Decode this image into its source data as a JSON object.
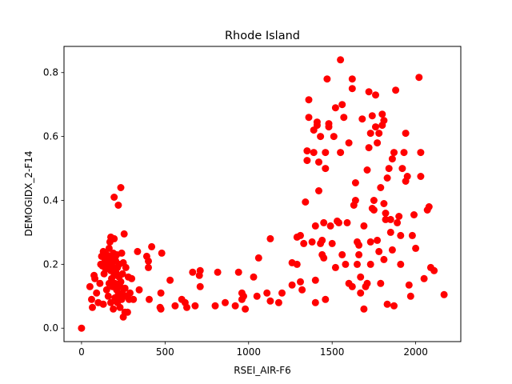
{
  "chart_data": {
    "type": "scatter",
    "title": "Rhode Island",
    "xlabel": "RSEI_AIR-F6",
    "ylabel": "DEMOGIDX_2-F14",
    "xlim": [
      -105,
      2270
    ],
    "ylim": [
      -0.042,
      0.882
    ],
    "xticks": [
      0,
      500,
      1000,
      1500,
      2000
    ],
    "yticks": [
      0.0,
      0.2,
      0.4,
      0.6,
      0.8
    ],
    "xtick_labels": [
      "0",
      "500",
      "1000",
      "1500",
      "2000"
    ],
    "ytick_labels": [
      "0.0",
      "0.2",
      "0.4",
      "0.6",
      "0.8"
    ],
    "marker_color": "#ff0000",
    "grid": false,
    "points": [
      [
        0,
        0.0
      ],
      [
        50,
        0.13
      ],
      [
        60,
        0.09
      ],
      [
        65,
        0.065
      ],
      [
        75,
        0.165
      ],
      [
        80,
        0.155
      ],
      [
        90,
        0.11
      ],
      [
        100,
        0.08
      ],
      [
        110,
        0.14
      ],
      [
        115,
        0.2
      ],
      [
        120,
        0.225
      ],
      [
        125,
        0.195
      ],
      [
        130,
        0.24
      ],
      [
        130,
        0.075
      ],
      [
        135,
        0.17
      ],
      [
        140,
        0.215
      ],
      [
        145,
        0.185
      ],
      [
        150,
        0.23
      ],
      [
        150,
        0.12
      ],
      [
        155,
        0.205
      ],
      [
        160,
        0.21
      ],
      [
        160,
        0.1
      ],
      [
        165,
        0.25
      ],
      [
        165,
        0.14
      ],
      [
        170,
        0.27
      ],
      [
        170,
        0.2
      ],
      [
        175,
        0.285
      ],
      [
        175,
        0.18
      ],
      [
        175,
        0.08
      ],
      [
        180,
        0.225
      ],
      [
        180,
        0.155
      ],
      [
        185,
        0.21
      ],
      [
        185,
        0.13
      ],
      [
        190,
        0.235
      ],
      [
        190,
        0.19
      ],
      [
        190,
        0.06
      ],
      [
        195,
        0.41
      ],
      [
        195,
        0.28
      ],
      [
        195,
        0.165
      ],
      [
        200,
        0.22
      ],
      [
        200,
        0.14
      ],
      [
        200,
        0.095
      ],
      [
        205,
        0.175
      ],
      [
        205,
        0.21
      ],
      [
        210,
        0.12
      ],
      [
        210,
        0.23
      ],
      [
        215,
        0.08
      ],
      [
        215,
        0.19
      ],
      [
        220,
        0.385
      ],
      [
        220,
        0.105
      ],
      [
        225,
        0.16
      ],
      [
        225,
        0.2
      ],
      [
        230,
        0.065
      ],
      [
        230,
        0.13
      ],
      [
        235,
        0.44
      ],
      [
        235,
        0.145
      ],
      [
        240,
        0.09
      ],
      [
        240,
        0.235
      ],
      [
        245,
        0.11
      ],
      [
        245,
        0.17
      ],
      [
        250,
        0.035
      ],
      [
        250,
        0.205
      ],
      [
        255,
        0.295
      ],
      [
        260,
        0.125
      ],
      [
        260,
        0.05
      ],
      [
        265,
        0.19
      ],
      [
        270,
        0.1
      ],
      [
        275,
        0.05
      ],
      [
        280,
        0.16
      ],
      [
        285,
        0.09
      ],
      [
        290,
        0.11
      ],
      [
        300,
        0.155
      ],
      [
        310,
        0.09
      ],
      [
        335,
        0.24
      ],
      [
        345,
        0.12
      ],
      [
        390,
        0.225
      ],
      [
        400,
        0.19
      ],
      [
        400,
        0.21
      ],
      [
        405,
        0.09
      ],
      [
        420,
        0.255
      ],
      [
        470,
        0.065
      ],
      [
        475,
        0.06
      ],
      [
        475,
        0.11
      ],
      [
        480,
        0.235
      ],
      [
        530,
        0.15
      ],
      [
        560,
        0.07
      ],
      [
        600,
        0.09
      ],
      [
        620,
        0.08
      ],
      [
        630,
        0.065
      ],
      [
        665,
        0.175
      ],
      [
        680,
        0.07
      ],
      [
        705,
        0.165
      ],
      [
        710,
        0.18
      ],
      [
        710,
        0.13
      ],
      [
        800,
        0.07
      ],
      [
        815,
        0.175
      ],
      [
        860,
        0.08
      ],
      [
        920,
        0.07
      ],
      [
        940,
        0.175
      ],
      [
        960,
        0.11
      ],
      [
        960,
        0.09
      ],
      [
        970,
        0.1
      ],
      [
        980,
        0.06
      ],
      [
        1030,
        0.16
      ],
      [
        1050,
        0.1
      ],
      [
        1060,
        0.22
      ],
      [
        1110,
        0.11
      ],
      [
        1130,
        0.28
      ],
      [
        1130,
        0.085
      ],
      [
        1180,
        0.08
      ],
      [
        1200,
        0.11
      ],
      [
        1260,
        0.205
      ],
      [
        1260,
        0.135
      ],
      [
        1290,
        0.285
      ],
      [
        1290,
        0.2
      ],
      [
        1310,
        0.29
      ],
      [
        1310,
        0.145
      ],
      [
        1320,
        0.12
      ],
      [
        1330,
        0.265
      ],
      [
        1340,
        0.395
      ],
      [
        1350,
        0.525
      ],
      [
        1350,
        0.555
      ],
      [
        1360,
        0.66
      ],
      [
        1360,
        0.715
      ],
      [
        1380,
        0.27
      ],
      [
        1390,
        0.62
      ],
      [
        1390,
        0.55
      ],
      [
        1400,
        0.15
      ],
      [
        1400,
        0.32
      ],
      [
        1400,
        0.08
      ],
      [
        1410,
        0.635
      ],
      [
        1410,
        0.645
      ],
      [
        1420,
        0.43
      ],
      [
        1420,
        0.52
      ],
      [
        1430,
        0.265
      ],
      [
        1430,
        0.6
      ],
      [
        1440,
        0.23
      ],
      [
        1440,
        0.275
      ],
      [
        1450,
        0.33
      ],
      [
        1450,
        0.22
      ],
      [
        1460,
        0.09
      ],
      [
        1460,
        0.5
      ],
      [
        1460,
        0.55
      ],
      [
        1470,
        0.78
      ],
      [
        1480,
        0.64
      ],
      [
        1480,
        0.63
      ],
      [
        1490,
        0.32
      ],
      [
        1500,
        0.265
      ],
      [
        1510,
        0.6
      ],
      [
        1520,
        0.69
      ],
      [
        1520,
        0.19
      ],
      [
        1530,
        0.335
      ],
      [
        1540,
        0.33
      ],
      [
        1550,
        0.84
      ],
      [
        1550,
        0.55
      ],
      [
        1560,
        0.7
      ],
      [
        1560,
        0.23
      ],
      [
        1570,
        0.66
      ],
      [
        1580,
        0.2
      ],
      [
        1590,
        0.33
      ],
      [
        1600,
        0.58
      ],
      [
        1600,
        0.14
      ],
      [
        1620,
        0.13
      ],
      [
        1620,
        0.78
      ],
      [
        1620,
        0.75
      ],
      [
        1630,
        0.385
      ],
      [
        1640,
        0.455
      ],
      [
        1640,
        0.4
      ],
      [
        1650,
        0.27
      ],
      [
        1650,
        0.2
      ],
      [
        1660,
        0.23
      ],
      [
        1660,
        0.26
      ],
      [
        1670,
        0.16
      ],
      [
        1670,
        0.11
      ],
      [
        1680,
        0.655
      ],
      [
        1690,
        0.32
      ],
      [
        1690,
        0.06
      ],
      [
        1700,
        0.13
      ],
      [
        1710,
        0.495
      ],
      [
        1710,
        0.14
      ],
      [
        1720,
        0.565
      ],
      [
        1720,
        0.74
      ],
      [
        1730,
        0.61
      ],
      [
        1730,
        0.27
      ],
      [
        1730,
        0.2
      ],
      [
        1740,
        0.665
      ],
      [
        1740,
        0.375
      ],
      [
        1750,
        0.37
      ],
      [
        1750,
        0.4
      ],
      [
        1760,
        0.73
      ],
      [
        1760,
        0.63
      ],
      [
        1770,
        0.275
      ],
      [
        1770,
        0.58
      ],
      [
        1780,
        0.24
      ],
      [
        1780,
        0.61
      ],
      [
        1790,
        0.14
      ],
      [
        1790,
        0.44
      ],
      [
        1800,
        0.635
      ],
      [
        1800,
        0.67
      ],
      [
        1810,
        0.215
      ],
      [
        1810,
        0.39
      ],
      [
        1810,
        0.65
      ],
      [
        1820,
        0.34
      ],
      [
        1820,
        0.36
      ],
      [
        1830,
        0.47
      ],
      [
        1830,
        0.075
      ],
      [
        1840,
        0.5
      ],
      [
        1850,
        0.3
      ],
      [
        1850,
        0.34
      ],
      [
        1860,
        0.245
      ],
      [
        1860,
        0.53
      ],
      [
        1870,
        0.55
      ],
      [
        1870,
        0.07
      ],
      [
        1880,
        0.745
      ],
      [
        1890,
        0.33
      ],
      [
        1900,
        0.35
      ],
      [
        1910,
        0.29
      ],
      [
        1910,
        0.2
      ],
      [
        1920,
        0.5
      ],
      [
        1930,
        0.55
      ],
      [
        1940,
        0.61
      ],
      [
        1940,
        0.46
      ],
      [
        1950,
        0.475
      ],
      [
        1960,
        0.135
      ],
      [
        1970,
        0.1
      ],
      [
        1980,
        0.29
      ],
      [
        1990,
        0.355
      ],
      [
        2000,
        0.25
      ],
      [
        2020,
        0.785
      ],
      [
        2030,
        0.55
      ],
      [
        2030,
        0.475
      ],
      [
        2050,
        0.155
      ],
      [
        2070,
        0.37
      ],
      [
        2080,
        0.38
      ],
      [
        2090,
        0.19
      ],
      [
        2110,
        0.18
      ],
      [
        2170,
        0.105
      ]
    ]
  }
}
